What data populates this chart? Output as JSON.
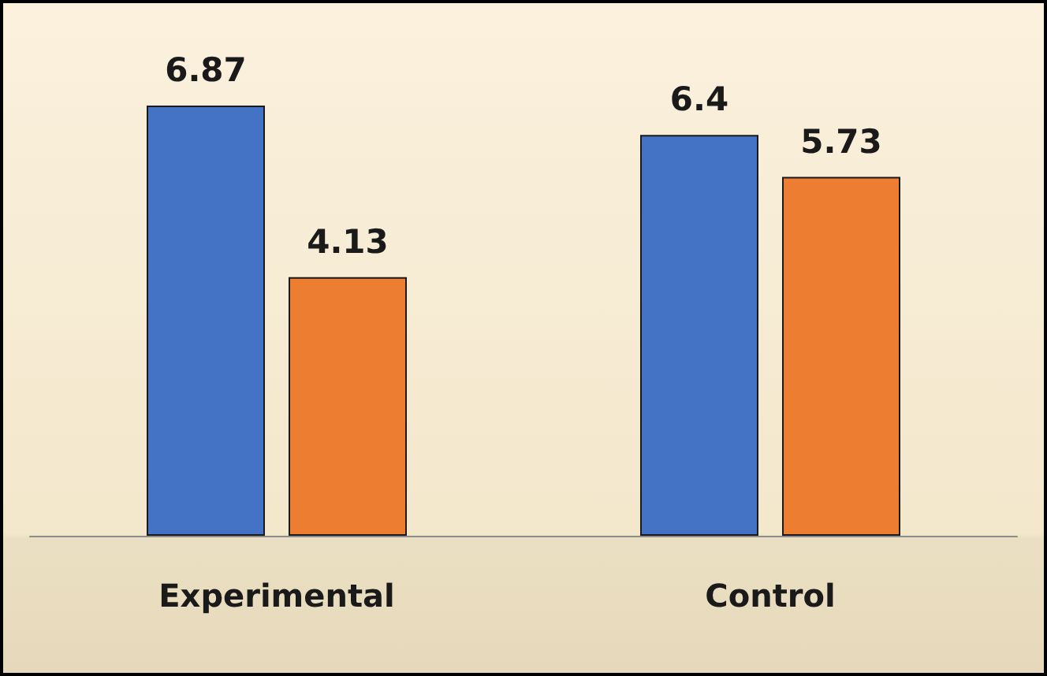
{
  "chart_data": {
    "type": "bar",
    "categories": [
      "Experimental",
      "Control"
    ],
    "series": [
      {
        "color": "#4472c4",
        "values": [
          6.87,
          6.4
        ]
      },
      {
        "color": "#ed7d31",
        "values": [
          4.13,
          5.73
        ]
      }
    ],
    "data_labels": true
  }
}
